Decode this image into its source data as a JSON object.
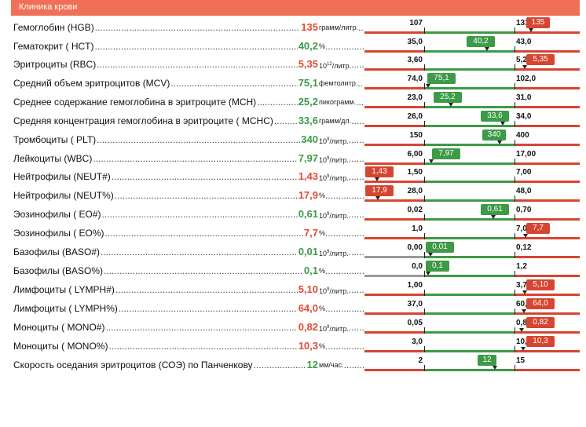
{
  "header": {
    "title": "Клиника крови"
  },
  "colors": {
    "red": "#d64531",
    "green": "#3d9a47",
    "grey": "#999999",
    "header": "#f07057"
  },
  "rows": [
    {
      "name": "Гемоглобин (HGB)",
      "value": "135",
      "unit": "грамм/литр.",
      "status": "high",
      "low": "107",
      "high": "131",
      "badge": "135"
    },
    {
      "name": "Гематокрит ( HCT)",
      "value": "40,2",
      "unit": "%",
      "status": "normal",
      "low": "35,0",
      "high": "43,0",
      "badge": "40,2"
    },
    {
      "name": "Эритроциты (RBC)",
      "value": "5,35",
      "unit_base": "10",
      "unit_exp": "12",
      "unit": "/литр.",
      "status": "high",
      "low": "3,60",
      "high": "5,20",
      "badge": "5,35"
    },
    {
      "name": "Средний объем эритроцитов (MCV)",
      "value": "75,1",
      "unit": "фемтолитр.",
      "status": "normal",
      "low": "74,0",
      "high": "102,0",
      "badge": "75,1"
    },
    {
      "name": "Среднее содержание гемоглобина в эритроците (MCH)",
      "value": "25,2",
      "unit": "пикограмм.",
      "status": "normal",
      "low": "23,0",
      "high": "31,0",
      "badge": "25,2"
    },
    {
      "name": "Средняя концентрация гемоглобина в эритроците ( MCHC)",
      "value": "33,6",
      "unit": "грамм/дл.",
      "status": "normal",
      "low": "26,0",
      "high": "34,0",
      "badge": "33,6"
    },
    {
      "name": "Тромбоциты ( PLT)",
      "value": "340",
      "unit_base": "10",
      "unit_exp": "9",
      "unit": "/литр.",
      "status": "normal",
      "low": "150",
      "high": "400",
      "badge": "340"
    },
    {
      "name": "Лейкоциты (WBC)",
      "value": "7,97",
      "unit_base": "10",
      "unit_exp": "9",
      "unit": "/литр.",
      "status": "normal",
      "low": "6,00",
      "high": "17,00",
      "badge": "7,97"
    },
    {
      "name": "Нейтрофилы (NEUT#)",
      "value": "1,43",
      "unit_base": "10",
      "unit_exp": "9",
      "unit": "/литр.",
      "status": "low",
      "low": "1,50",
      "high": "7,00",
      "badge": "1,43"
    },
    {
      "name": "Нейтрофилы (NEUT%)",
      "value": "17,9",
      "unit": "%",
      "status": "low",
      "low": "28,0",
      "high": "48,0",
      "badge": "17,9"
    },
    {
      "name": "Эозинофилы ( EO#)",
      "value": "0,61",
      "unit_base": "10",
      "unit_exp": "9",
      "unit": "/литр.",
      "status": "normal",
      "low": "0,02",
      "high": "0,70",
      "badge": "0,61"
    },
    {
      "name": "Эозинофилы ( EO%)",
      "value": "7,7",
      "unit": "%",
      "status": "high",
      "low": "1,0",
      "high": "7,0",
      "badge": "7,7"
    },
    {
      "name": "Базофилы (BASO#)",
      "value": "0,01",
      "unit_base": "10",
      "unit_exp": "9",
      "unit": "/литр.",
      "status": "normal",
      "low": "0,00",
      "high": "0,12",
      "badge": "0,01"
    },
    {
      "name": "Базофилы (BASO%)",
      "value": "0,1",
      "unit": "%",
      "status": "normal",
      "low": "0,0",
      "high": "1,2",
      "badge": "0,1"
    },
    {
      "name": "Лимфоциты ( LYMPH#)",
      "value": "5,10",
      "unit_base": "10",
      "unit_exp": "9",
      "unit": "/литр.",
      "status": "high",
      "low": "1,00",
      "high": "3,70",
      "badge": "5,10"
    },
    {
      "name": "Лимфоциты ( LYMPH%)",
      "value": "64,0",
      "unit": "%",
      "status": "high",
      "low": "37,0",
      "high": "60,0",
      "badge": "64,0"
    },
    {
      "name": "Моноциты ( MONO#)",
      "value": "0,82",
      "unit_base": "10",
      "unit_exp": "9",
      "unit": "/литр.",
      "status": "high",
      "low": "0,05",
      "high": "0,80",
      "badge": "0,82"
    },
    {
      "name": "Моноциты ( MONO%)",
      "value": "10,3",
      "unit": "%",
      "status": "high",
      "low": "3,0",
      "high": "10,0",
      "badge": "10,3"
    },
    {
      "name": "Скорость оседания эритроцитов (СОЭ) по Панченкову",
      "value": "12",
      "unit": "мм/час.",
      "status": "normal",
      "low": "2",
      "high": "15",
      "badge": "12"
    }
  ]
}
